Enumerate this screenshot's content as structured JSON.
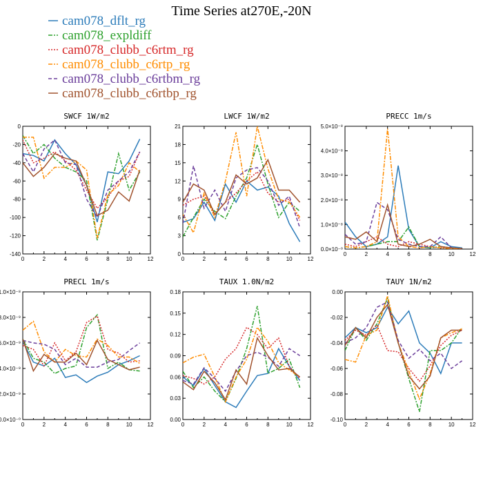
{
  "figure": {
    "title": "Time Series at270E,-20N"
  },
  "legend": [
    {
      "name": "cam078_dflt_rg",
      "color": "#2b7bb9",
      "dash": "solid"
    },
    {
      "name": "cam078_expldiff",
      "color": "#2ca02c",
      "dash": "dashdot"
    },
    {
      "name": "cam078_clubb_c6rtm_rg",
      "color": "#d62728",
      "dash": "dot"
    },
    {
      "name": "cam078_clubb_c6rtp_rg",
      "color": "#ff8c00",
      "dash": "dashdot"
    },
    {
      "name": "cam078_clubb_c6rtbm_rg",
      "color": "#6a3d9a",
      "dash": "dash"
    },
    {
      "name": "cam078_clubb_c6rtbp_rg",
      "color": "#a0522d",
      "dash": "solid"
    }
  ],
  "chart_data": [
    {
      "type": "line",
      "title": "SWCF   1W/m2",
      "xlim": [
        0,
        12
      ],
      "ylim": [
        -140,
        0
      ],
      "xticks": [
        0,
        2,
        4,
        6,
        8,
        10,
        12
      ],
      "xtick_labels": [
        "0",
        "2",
        "4",
        "6",
        "8",
        "10",
        "12"
      ],
      "yticks": [
        -140,
        -120,
        -100,
        -80,
        -60,
        -40,
        -20,
        0
      ],
      "ytick_labels": [
        "-140",
        "-120",
        "-100",
        "-80",
        "-60",
        "-40",
        "-20",
        "0"
      ],
      "x": [
        0,
        1,
        2,
        3,
        4,
        5,
        6,
        7,
        8,
        9,
        10,
        11
      ],
      "series": [
        {
          "values": [
            -30,
            -32,
            -38,
            -15,
            -30,
            -42,
            -65,
            -105,
            -50,
            -52,
            -38,
            -14
          ]
        },
        {
          "values": [
            -10,
            -30,
            -20,
            -35,
            -45,
            -50,
            -60,
            -125,
            -80,
            -30,
            -70,
            -50
          ]
        },
        {
          "values": [
            -15,
            -40,
            -35,
            -28,
            -38,
            -48,
            -70,
            -90,
            -78,
            -60,
            -55,
            -28
          ]
        },
        {
          "values": [
            -12,
            -12,
            -57,
            -45,
            -45,
            -38,
            -48,
            -123,
            -75,
            -65,
            -40,
            -50
          ]
        },
        {
          "values": [
            -30,
            -50,
            -25,
            -15,
            -40,
            -42,
            -80,
            -100,
            -70,
            -60,
            -50,
            -28
          ]
        },
        {
          "values": [
            -40,
            -55,
            -45,
            -30,
            -35,
            -38,
            -65,
            -98,
            -92,
            -72,
            -82,
            -48
          ]
        }
      ]
    },
    {
      "type": "line",
      "title": "LWCF   1W/m2",
      "xlim": [
        0,
        12
      ],
      "ylim": [
        0,
        21
      ],
      "xticks": [
        0,
        2,
        4,
        6,
        8,
        10,
        12
      ],
      "xtick_labels": [
        "0",
        "2",
        "4",
        "6",
        "8",
        "10",
        "12"
      ],
      "yticks": [
        0,
        3,
        6,
        9,
        12,
        15,
        18,
        21
      ],
      "ytick_labels": [
        "0",
        "3",
        "6",
        "9",
        "12",
        "15",
        "18",
        "21"
      ],
      "x": [
        0,
        1,
        2,
        3,
        4,
        5,
        6,
        7,
        8,
        9,
        10,
        11
      ],
      "series": [
        {
          "values": [
            5.2,
            5.8,
            8.5,
            5.5,
            11.5,
            8.5,
            12.0,
            10.5,
            11.0,
            9.5,
            5.0,
            2.0
          ]
        },
        {
          "values": [
            2.8,
            6.0,
            9.0,
            7.0,
            5.8,
            9.5,
            12.5,
            18.0,
            11.5,
            6.0,
            8.5,
            7.0
          ]
        },
        {
          "values": [
            8.0,
            9.0,
            9.5,
            6.5,
            8.5,
            10.0,
            12.0,
            13.5,
            10.0,
            8.5,
            9.0,
            5.5
          ]
        },
        {
          "values": [
            6.5,
            3.5,
            10.0,
            6.0,
            12.0,
            20.0,
            9.5,
            21.0,
            14.0,
            9.0,
            8.5,
            6.0
          ]
        },
        {
          "values": [
            5.0,
            14.5,
            7.5,
            10.5,
            7.0,
            12.5,
            13.8,
            14.2,
            12.0,
            8.0,
            9.5,
            4.3
          ]
        },
        {
          "values": [
            8.5,
            11.5,
            10.5,
            6.5,
            8.5,
            13.0,
            11.5,
            12.5,
            15.5,
            10.5,
            10.5,
            8.5
          ]
        }
      ]
    },
    {
      "type": "line",
      "title": "PRECC   1m/s",
      "xlim": [
        0,
        12
      ],
      "ylim": [
        0,
        5e-08
      ],
      "xticks": [
        0,
        2,
        4,
        6,
        8,
        10,
        12
      ],
      "xtick_labels": [
        "0",
        "2",
        "4",
        "6",
        "8",
        "10",
        "12"
      ],
      "yticks": [
        0,
        1e-08,
        2e-08,
        3e-08,
        4e-08,
        5e-08
      ],
      "ytick_labels": [
        "0.0×10⁻⁰",
        "1.0×10⁻⁸",
        "2.0×10⁻⁸",
        "3.0×10⁻⁸",
        "4.0×10⁻⁸",
        "5.0×10⁻⁸"
      ],
      "x": [
        0,
        1,
        2,
        3,
        4,
        5,
        6,
        7,
        8,
        9,
        10,
        11
      ],
      "series": [
        {
          "values": [
            1.1e-08,
            5e-09,
            1e-09,
            2e-09,
            5e-09,
            3.4e-08,
            8e-09,
            1e-09,
            5e-10,
            3e-09,
            1e-09,
            5e-10
          ]
        },
        {
          "values": [
            1e-09,
            5e-10,
            1e-09,
            2e-09,
            3e-09,
            3e-09,
            9e-09,
            1e-09,
            5e-10,
            1e-09,
            5e-10,
            2e-10
          ]
        },
        {
          "values": [
            2e-09,
            1e-09,
            3e-09,
            5e-09,
            2e-09,
            1e-09,
            3e-09,
            2e-09,
            1e-09,
            5e-10,
            5e-10,
            2e-10
          ]
        },
        {
          "values": [
            1e-09,
            5e-10,
            1e-09,
            3e-09,
            4.9e-08,
            5e-09,
            1e-09,
            5e-10,
            1e-09,
            5e-10,
            2e-10,
            1e-10
          ]
        },
        {
          "values": [
            6e-09,
            2e-09,
            3e-09,
            1.9e-08,
            1.6e-08,
            4e-09,
            2e-09,
            1e-09,
            1e-09,
            5e-09,
            5e-10,
            2e-10
          ]
        },
        {
          "values": [
            5e-09,
            4e-09,
            7e-09,
            3e-09,
            1.8e-08,
            2e-09,
            1e-09,
            2e-09,
            4e-09,
            1e-09,
            5e-10,
            2e-10
          ]
        }
      ]
    },
    {
      "type": "line",
      "title": "PRECL   1m/s",
      "xlim": [
        0,
        12
      ],
      "ylim": [
        0,
        1e-08
      ],
      "xticks": [
        0,
        2,
        4,
        6,
        8,
        10,
        12
      ],
      "xtick_labels": [
        "0",
        "2",
        "4",
        "6",
        "8",
        "10",
        "12"
      ],
      "yticks": [
        0,
        2e-09,
        4e-09,
        6e-09,
        8e-09,
        1e-08
      ],
      "ytick_labels": [
        "0.0×10⁻⁰",
        "2.0×10⁻⁹",
        "4.0×10⁻⁹",
        "6.0×10⁻⁹",
        "8.0×10⁻⁹",
        "1.0×10⁻⁸"
      ],
      "x": [
        0,
        1,
        2,
        3,
        4,
        5,
        6,
        7,
        8,
        9,
        10,
        11
      ],
      "series": [
        {
          "values": [
            6.1e-09,
            4.5e-09,
            4.2e-09,
            4.8e-09,
            3.3e-09,
            3.5e-09,
            2.9e-09,
            3.4e-09,
            3.7e-09,
            4.3e-09,
            4.6e-09,
            5e-09
          ]
        },
        {
          "values": [
            6.3e-09,
            4.8e-09,
            4.5e-09,
            3.6e-09,
            4e-09,
            4.2e-09,
            7.2e-09,
            8.2e-09,
            4e-09,
            4.5e-09,
            3.9e-09,
            3.8e-09
          ]
        },
        {
          "values": [
            5.8e-09,
            5.5e-09,
            4.2e-09,
            6e-09,
            4.6e-09,
            5.3e-09,
            7.6e-09,
            8.1e-09,
            5.5e-09,
            5.2e-09,
            4.5e-09,
            4.6e-09
          ]
        },
        {
          "values": [
            7e-09,
            7.7e-09,
            5.3e-09,
            4.5e-09,
            5.5e-09,
            5e-09,
            4.9e-09,
            6.3e-09,
            5.8e-09,
            4.9e-09,
            4.9e-09,
            4.4e-09
          ]
        },
        {
          "values": [
            6.2e-09,
            6e-09,
            5.9e-09,
            5.5e-09,
            4.3e-09,
            4.8e-09,
            4.1e-09,
            4.1e-09,
            4.5e-09,
            4.7e-09,
            5.4e-09,
            6e-09
          ]
        },
        {
          "values": [
            6.3e-09,
            3.8e-09,
            5.1e-09,
            4.5e-09,
            4.5e-09,
            5.2e-09,
            4.3e-09,
            6.2e-09,
            4.7e-09,
            4.3e-09,
            3.9e-09,
            4.1e-09
          ]
        }
      ]
    },
    {
      "type": "line",
      "title": "TAUX   1.0N/m2",
      "xlim": [
        0,
        12
      ],
      "ylim": [
        0,
        0.18
      ],
      "xticks": [
        0,
        2,
        4,
        6,
        8,
        10,
        12
      ],
      "xtick_labels": [
        "0",
        "2",
        "4",
        "6",
        "8",
        "10",
        "12"
      ],
      "yticks": [
        0,
        0.03,
        0.06,
        0.09,
        0.12,
        0.15,
        0.18
      ],
      "ytick_labels": [
        "0.00",
        "0.03",
        "0.06",
        "0.09",
        "0.12",
        "0.15",
        "0.18"
      ],
      "x": [
        0,
        1,
        2,
        3,
        4,
        5,
        6,
        7,
        8,
        9,
        10,
        11
      ],
      "series": [
        {
          "values": [
            0.06,
            0.048,
            0.072,
            0.048,
            0.025,
            0.017,
            0.04,
            0.062,
            0.065,
            0.1,
            0.075,
            0.055
          ]
        },
        {
          "values": [
            0.068,
            0.045,
            0.06,
            0.04,
            0.025,
            0.058,
            0.1,
            0.16,
            0.065,
            0.072,
            0.085,
            0.045
          ]
        },
        {
          "values": [
            0.062,
            0.058,
            0.05,
            0.06,
            0.085,
            0.1,
            0.13,
            0.12,
            0.1,
            0.115,
            0.075,
            0.058
          ]
        },
        {
          "values": [
            0.08,
            0.088,
            0.092,
            0.06,
            0.025,
            0.06,
            0.085,
            0.13,
            0.11,
            0.08,
            0.07,
            0.06
          ]
        },
        {
          "values": [
            0.055,
            0.05,
            0.073,
            0.058,
            0.04,
            0.068,
            0.09,
            0.095,
            0.088,
            0.075,
            0.1,
            0.09
          ]
        },
        {
          "values": [
            0.053,
            0.042,
            0.068,
            0.052,
            0.028,
            0.07,
            0.05,
            0.115,
            0.09,
            0.07,
            0.072,
            0.06
          ]
        }
      ]
    },
    {
      "type": "line",
      "title": "TAUY   1N/m2",
      "xlim": [
        0,
        12
      ],
      "ylim": [
        -0.1,
        0
      ],
      "xticks": [
        0,
        2,
        4,
        6,
        8,
        10,
        12
      ],
      "xtick_labels": [
        "0",
        "2",
        "4",
        "6",
        "8",
        "10",
        "12"
      ],
      "yticks": [
        -0.1,
        -0.08,
        -0.06,
        -0.04,
        -0.02,
        0
      ],
      "ytick_labels": [
        "-0.10",
        "-0.08",
        "-0.06",
        "-0.04",
        "-0.02",
        "0.00"
      ],
      "x": [
        0,
        1,
        2,
        3,
        4,
        5,
        6,
        7,
        8,
        9,
        10,
        11
      ],
      "series": [
        {
          "values": [
            -0.036,
            -0.028,
            -0.032,
            -0.028,
            -0.012,
            -0.025,
            -0.015,
            -0.04,
            -0.048,
            -0.064,
            -0.04,
            -0.04
          ]
        },
        {
          "values": [
            -0.046,
            -0.028,
            -0.038,
            -0.025,
            -0.005,
            -0.04,
            -0.068,
            -0.094,
            -0.046,
            -0.046,
            -0.04,
            -0.028
          ]
        },
        {
          "values": [
            -0.038,
            -0.03,
            -0.034,
            -0.026,
            -0.046,
            -0.047,
            -0.06,
            -0.07,
            -0.058,
            -0.042,
            -0.034,
            -0.03
          ]
        },
        {
          "values": [
            -0.053,
            -0.055,
            -0.034,
            -0.03,
            -0.003,
            -0.04,
            -0.062,
            -0.084,
            -0.064,
            -0.036,
            -0.032,
            -0.029
          ]
        },
        {
          "values": [
            -0.04,
            -0.036,
            -0.028,
            -0.012,
            -0.008,
            -0.038,
            -0.052,
            -0.045,
            -0.054,
            -0.048,
            -0.06,
            -0.054
          ]
        },
        {
          "values": [
            -0.042,
            -0.028,
            -0.036,
            -0.02,
            -0.01,
            -0.04,
            -0.066,
            -0.076,
            -0.066,
            -0.036,
            -0.03,
            -0.03
          ]
        }
      ]
    }
  ]
}
